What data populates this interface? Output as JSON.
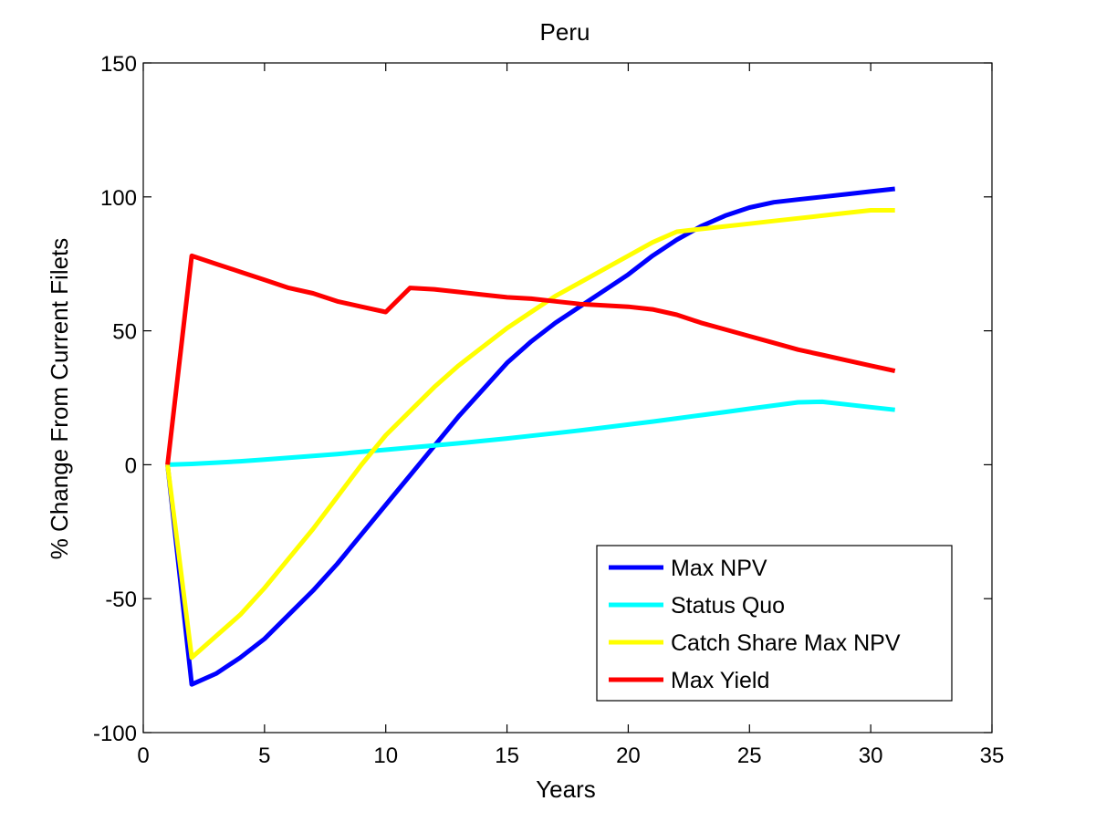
{
  "chart_data": {
    "type": "line",
    "title": "Peru",
    "xlabel": "Years",
    "ylabel": "% Change From Current Filets",
    "xlim": [
      0,
      35
    ],
    "ylim": [
      -100,
      150
    ],
    "xticks": [
      0,
      5,
      10,
      15,
      20,
      25,
      30,
      35
    ],
    "yticks": [
      -100,
      -50,
      0,
      50,
      100,
      150
    ],
    "grid": false,
    "legend_position": "bottom-right",
    "series": [
      {
        "name": "Max NPV",
        "color": "#0000ff",
        "x": [
          1,
          2,
          3,
          4,
          5,
          6,
          7,
          8,
          9,
          10,
          11,
          12,
          13,
          14,
          15,
          16,
          17,
          18,
          19,
          20,
          21,
          22,
          23,
          24,
          25,
          26,
          27,
          28,
          29,
          30,
          31
        ],
        "y": [
          0,
          -82,
          -78,
          -72,
          -65,
          -56,
          -47,
          -37,
          -26,
          -15,
          -4,
          7,
          18,
          28,
          38,
          46,
          53,
          59,
          65,
          71,
          78,
          84,
          89,
          93,
          96,
          98,
          99,
          100,
          101,
          102,
          103
        ]
      },
      {
        "name": "Status Quo",
        "color": "#00ffff",
        "x": [
          1,
          2,
          3,
          4,
          5,
          6,
          7,
          8,
          9,
          10,
          11,
          12,
          13,
          14,
          15,
          16,
          17,
          18,
          19,
          20,
          21,
          22,
          23,
          24,
          25,
          26,
          27,
          28,
          29,
          30,
          31
        ],
        "y": [
          0,
          0.3,
          0.8,
          1.3,
          1.9,
          2.6,
          3.3,
          4.0,
          4.8,
          5.6,
          6.4,
          7.2,
          8.0,
          8.9,
          9.8,
          10.8,
          11.8,
          12.8,
          13.9,
          15.0,
          16.1,
          17.3,
          18.5,
          19.7,
          20.9,
          22.1,
          23.3,
          23.5,
          22.5,
          21.5,
          20.5
        ]
      },
      {
        "name": "Catch Share Max NPV",
        "color": "#ffff00",
        "x": [
          1,
          2,
          3,
          4,
          5,
          6,
          7,
          8,
          9,
          10,
          11,
          12,
          13,
          14,
          15,
          16,
          17,
          18,
          19,
          20,
          21,
          22,
          23,
          24,
          25,
          26,
          27,
          28,
          29,
          30,
          31
        ],
        "y": [
          0,
          -72,
          -64,
          -56,
          -46,
          -35,
          -24,
          -12,
          0,
          11,
          20,
          29,
          37,
          44,
          51,
          57,
          63,
          68,
          73,
          78,
          83,
          87,
          88,
          89,
          90,
          91,
          92,
          93,
          94,
          95,
          95
        ]
      },
      {
        "name": "Max Yield",
        "color": "#ff0000",
        "x": [
          1,
          2,
          3,
          4,
          5,
          6,
          7,
          8,
          9,
          10,
          11,
          12,
          13,
          14,
          15,
          16,
          17,
          18,
          19,
          20,
          21,
          22,
          23,
          24,
          25,
          26,
          27,
          28,
          29,
          30,
          31
        ],
        "y": [
          0,
          78,
          75,
          72,
          69,
          66,
          64,
          61,
          59,
          57,
          66,
          65.5,
          64.5,
          63.5,
          62.5,
          62,
          61,
          60,
          59.5,
          59,
          58,
          56,
          53,
          50.5,
          48,
          45.5,
          43,
          41,
          39,
          37,
          35
        ]
      }
    ]
  }
}
